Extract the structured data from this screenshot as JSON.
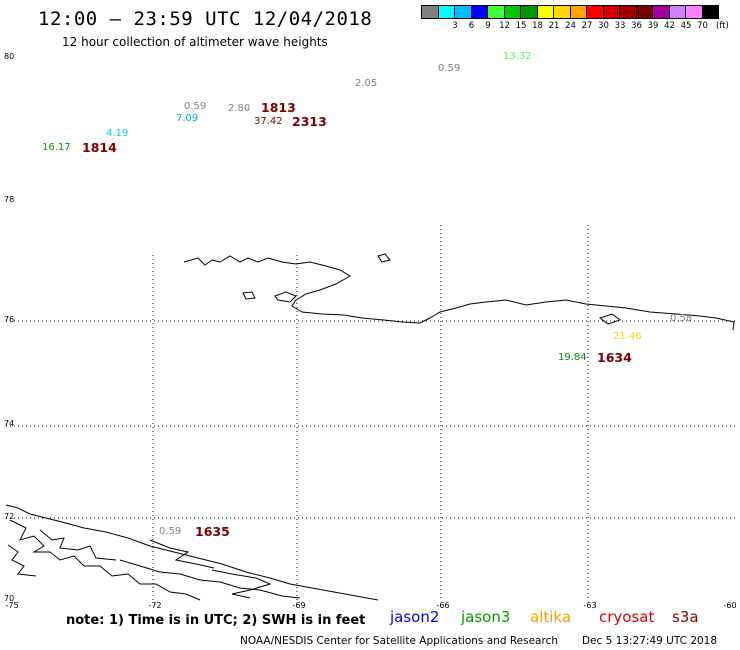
{
  "header": {
    "title": "12:00 – 23:59 UTC 12/04/2018",
    "subtitle": "12 hour collection of altimeter wave heights"
  },
  "scale": {
    "unit": "(ft)",
    "items": [
      {
        "label": "",
        "color": "#7f7f7f"
      },
      {
        "label": "3",
        "color": "#00ffff"
      },
      {
        "label": "6",
        "color": "#00bfff"
      },
      {
        "label": "9",
        "color": "#0000ff"
      },
      {
        "label": "12",
        "color": "#40ff40"
      },
      {
        "label": "15",
        "color": "#00c800"
      },
      {
        "label": "18",
        "color": "#009600"
      },
      {
        "label": "21",
        "color": "#ffff00"
      },
      {
        "label": "24",
        "color": "#ffd700"
      },
      {
        "label": "27",
        "color": "#ffa500"
      },
      {
        "label": "30",
        "color": "#ff0000"
      },
      {
        "label": "33",
        "color": "#d20000"
      },
      {
        "label": "36",
        "color": "#a00000"
      },
      {
        "label": "39",
        "color": "#780000"
      },
      {
        "label": "42",
        "color": "#a000a0"
      },
      {
        "label": "45",
        "color": "#d080ff"
      },
      {
        "label": "70",
        "color": "#ff80ff"
      },
      {
        "label": "",
        "color": "#000000"
      }
    ]
  },
  "axes": {
    "lat_labels": [
      "80",
      "78",
      "76",
      "74",
      "72",
      "70"
    ],
    "lon_labels": [
      "-75",
      "-72",
      "-69",
      "-66",
      "-63",
      "-60"
    ]
  },
  "observations": [
    {
      "value": "13.32",
      "color": "#66ee66"
    },
    {
      "value": "0.59",
      "color": "#7f7f7f"
    },
    {
      "value": "2.05",
      "color": "#7f7f7f"
    },
    {
      "value": "0.59",
      "color": "#7f7f7f"
    },
    {
      "value": "2.80",
      "color": "#7f7f7f"
    },
    {
      "value": "7.09",
      "color": "#00a8e0"
    },
    {
      "value": "37.42",
      "color": "#7a0000"
    },
    {
      "value": "4.19",
      "color": "#00d0e0"
    },
    {
      "value": "16.17",
      "color": "#00a000"
    },
    {
      "value": "21.46",
      "color": "#f0e000"
    },
    {
      "value": "0.58",
      "color": "#7f7f7f"
    },
    {
      "value": "19.84",
      "color": "#008c00"
    },
    {
      "value": "0.59",
      "color": "#7f7f7f"
    }
  ],
  "times": [
    "1813",
    "2313",
    "1814",
    "1634",
    "1635"
  ],
  "footer": {
    "note": "note:  1) Time is in UTC;  2) SWH is in feet",
    "satellites": [
      {
        "name": "jason2",
        "color": "#0000e0"
      },
      {
        "name": "jason3",
        "color": "#00a000"
      },
      {
        "name": "altika",
        "color": "#ffa000"
      },
      {
        "name": "cryosat",
        "color": "#e00000"
      },
      {
        "name": "s3a",
        "color": "#900000"
      }
    ],
    "credit": "NOAA/NESDIS Center for Satellite Applications and Research",
    "timestamp": "Dec  5 13:27:49 UTC 2018"
  }
}
